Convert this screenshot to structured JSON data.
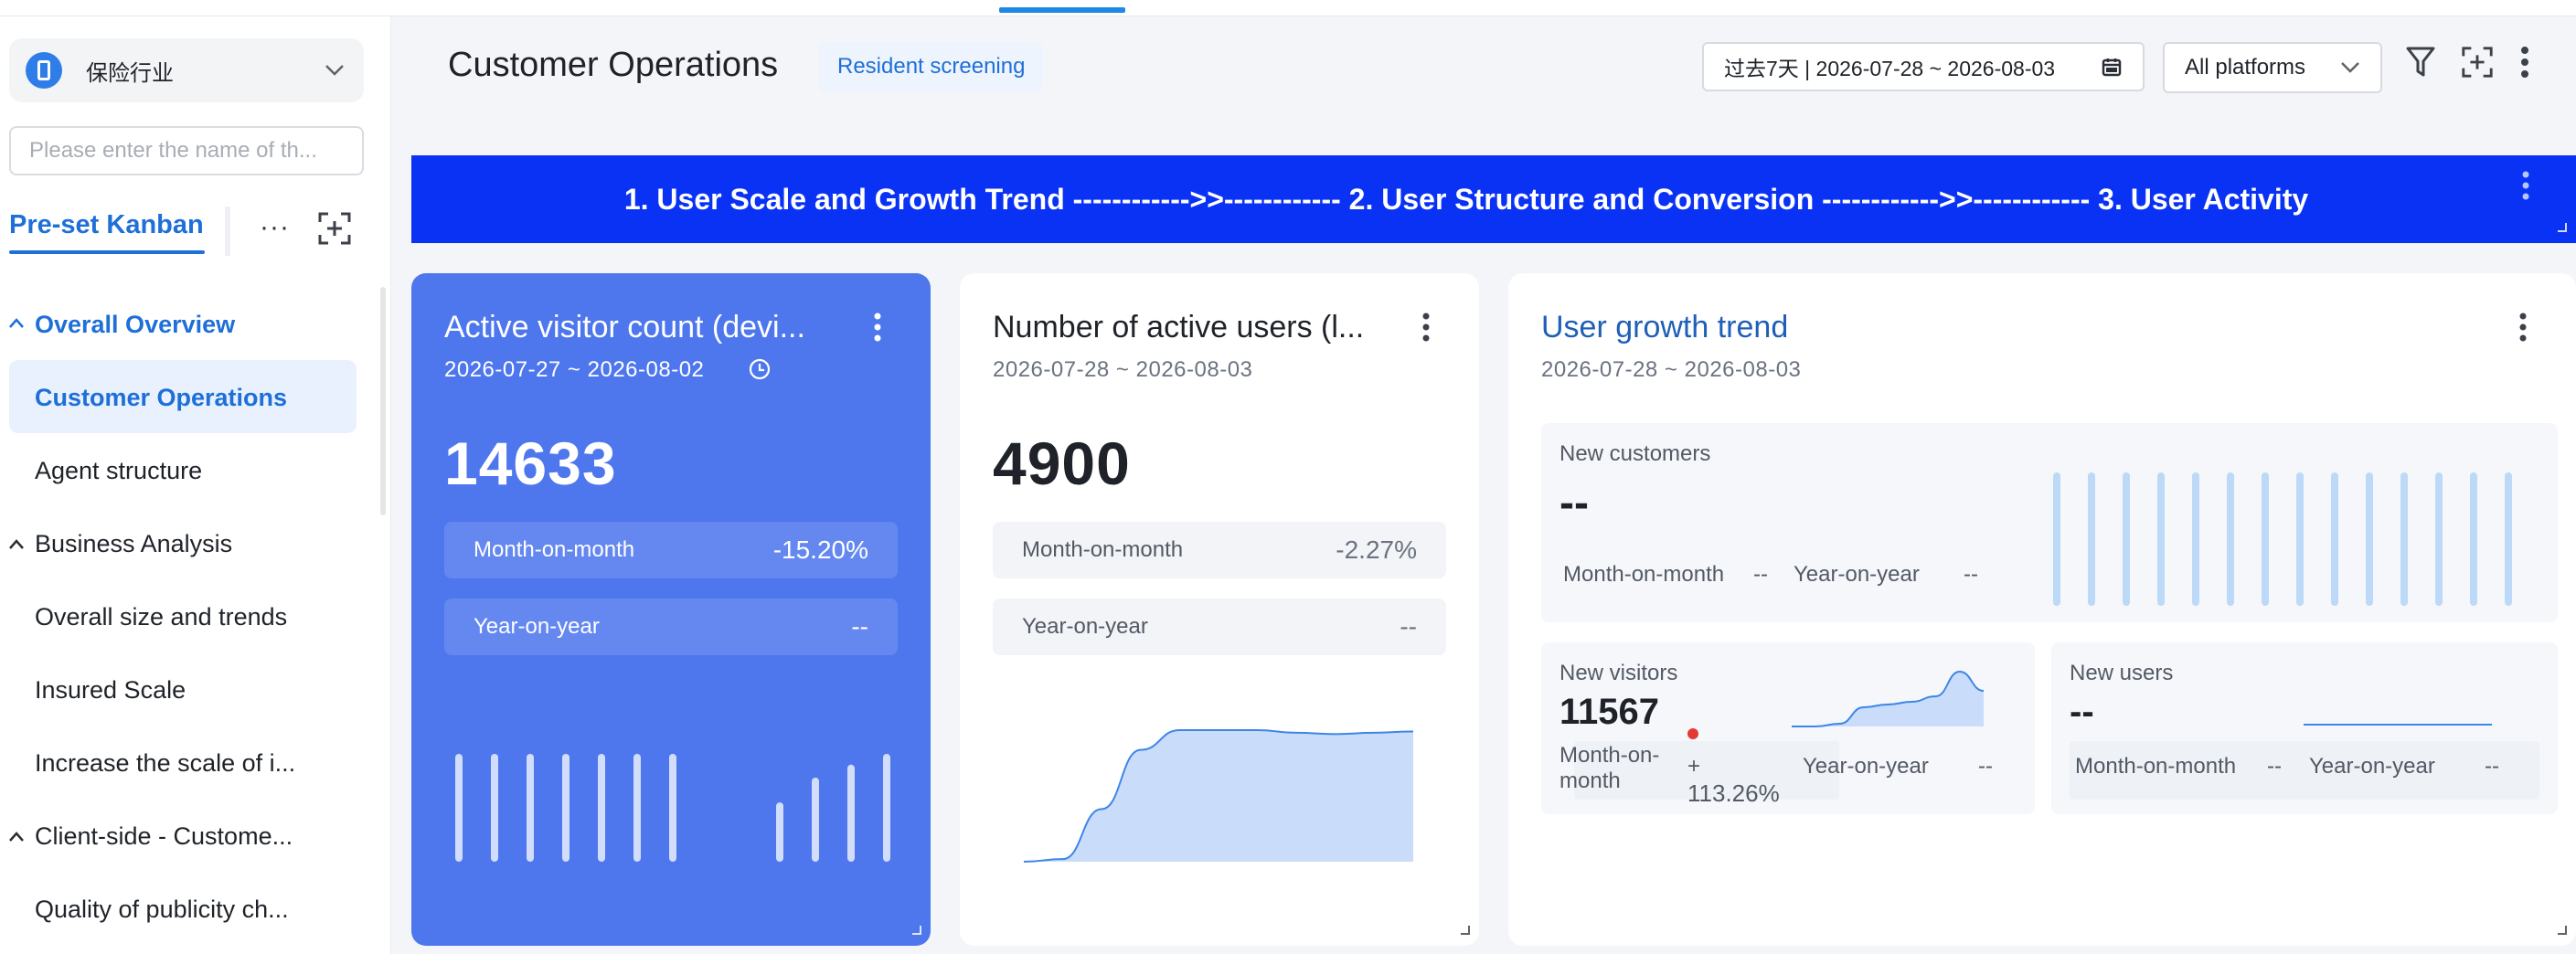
{
  "sidebar": {
    "industry": "保险行业",
    "search_placeholder": "Please enter the name of th...",
    "kanban_tab": "Pre-set Kanban",
    "more": "···",
    "items": [
      {
        "label": "Overall Overview",
        "type": "group-active"
      },
      {
        "label": "Customer Operations",
        "type": "item-active"
      },
      {
        "label": "Agent structure",
        "type": "item"
      },
      {
        "label": "Business Analysis",
        "type": "group"
      },
      {
        "label": "Overall size and trends",
        "type": "item"
      },
      {
        "label": "Insured Scale",
        "type": "item"
      },
      {
        "label": "Increase the scale of i...",
        "type": "item"
      },
      {
        "label": "Client-side - Custome...",
        "type": "group"
      },
      {
        "label": "Quality of publicity ch...",
        "type": "item"
      }
    ]
  },
  "header": {
    "title": "Customer Operations",
    "tag": "Resident screening",
    "date_range": "过去7天 | 2026-07-28 ~ 2026-08-03",
    "platform": "All platforms"
  },
  "banner": {
    "text": "1. User Scale and Growth Trend ------------>>------------ 2. User Structure and Conversion ------------>>------------ 3. User Activity"
  },
  "cards": {
    "active_visitors": {
      "title": "Active visitor count (devi...",
      "date": "2026-07-27 ~ 2026-08-02",
      "value": "14633",
      "mom_label": "Month-on-month",
      "mom_value": "-15.20%",
      "yoy_label": "Year-on-year",
      "yoy_value": "--"
    },
    "active_users": {
      "title": "Number of active users (l...",
      "date": "2026-07-28 ~ 2026-08-03",
      "value": "4900",
      "mom_label": "Month-on-month",
      "mom_value": "-2.27%",
      "yoy_label": "Year-on-year",
      "yoy_value": "--"
    },
    "growth": {
      "title": "User growth trend",
      "date": "2026-07-28 ~ 2026-08-03",
      "new_customers": {
        "label": "New customers",
        "value": "--",
        "mom_label": "Month-on-month",
        "mom_value": "--",
        "yoy_label": "Year-on-year",
        "yoy_value": "--"
      },
      "new_visitors": {
        "label": "New visitors",
        "value": "11567",
        "mom_label_1": "Month-on-",
        "mom_label_2": "month",
        "mom_value_1": "+",
        "mom_value_2": "113.26%",
        "yoy_label": "Year-on-year",
        "yoy_value": "--"
      },
      "new_users": {
        "label": "New users",
        "value": "--",
        "mom_label": "Month-on-month",
        "mom_value": "--",
        "yoy_label": "Year-on-year",
        "yoy_value": "--"
      }
    }
  },
  "colors": {
    "accent": "#1e6fd8",
    "banner": "#0a32f5",
    "blue_card": "#4e77ee",
    "chart_fill": "#c9ddfb",
    "chart_line": "#3d86e6",
    "alert_dot": "#e53935"
  },
  "chart_data": [
    {
      "type": "bar",
      "name": "active-visitors-spark",
      "values": [
        1,
        1,
        1,
        1,
        1,
        1,
        1,
        0,
        0,
        0.55,
        0.78,
        0.9,
        1
      ]
    },
    {
      "type": "area",
      "name": "active-users-spark",
      "values": [
        0,
        0.02,
        0.4,
        0.85,
        1,
        1,
        1,
        0.98,
        0.97,
        0.98,
        0.99
      ]
    },
    {
      "type": "bar",
      "name": "new-customers-spark",
      "values": [
        1,
        1,
        1,
        1,
        1,
        1,
        1,
        1,
        1,
        1,
        1,
        1,
        1,
        1
      ]
    },
    {
      "type": "area",
      "name": "new-visitors-spark",
      "values": [
        0,
        0,
        0.05,
        0.35,
        0.4,
        0.45,
        0.55,
        1,
        0.65
      ]
    },
    {
      "type": "line",
      "name": "new-users-spark",
      "values": [
        0,
        0,
        0,
        0,
        0,
        0
      ]
    }
  ]
}
